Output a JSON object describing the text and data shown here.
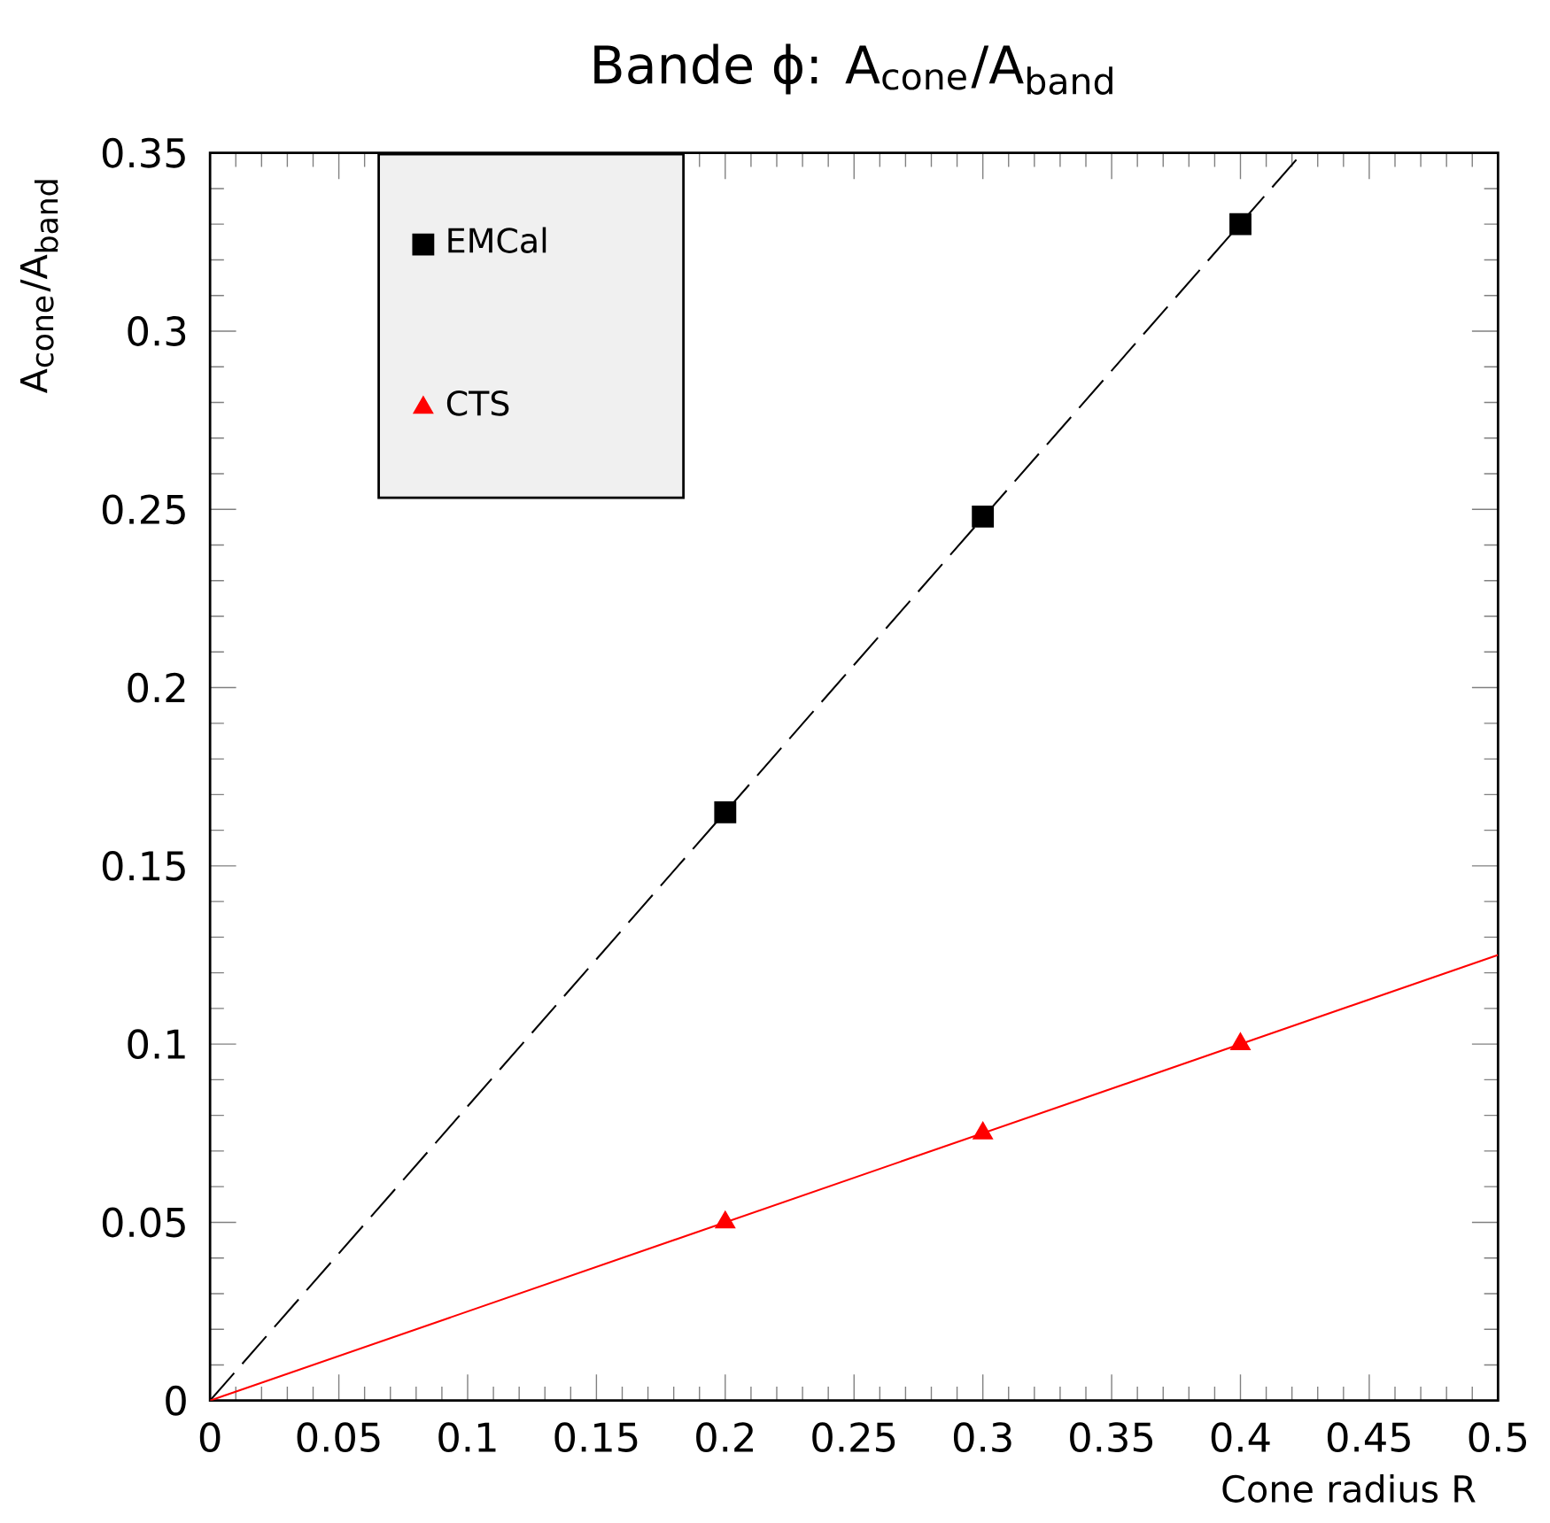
{
  "chart_data": {
    "type": "scatter",
    "title": "Bande ϕ: A$_{cone}$/A$_{band}$",
    "xlabel": "Cone radius R",
    "ylabel": "A$_{cone}$/A$_{band}$",
    "xlim": [
      0,
      0.5
    ],
    "ylim": [
      0,
      0.35
    ],
    "xticks": [
      0,
      0.05,
      0.1,
      0.15,
      0.2,
      0.25,
      0.3,
      0.35,
      0.4,
      0.45,
      0.5
    ],
    "yticks": [
      0,
      0.05,
      0.1,
      0.15,
      0.2,
      0.25,
      0.3,
      0.35
    ],
    "legend": "top left",
    "grid": false,
    "series": [
      {
        "name": "EMCal",
        "marker": "square",
        "color": "#000000",
        "x": [
          0.2,
          0.3,
          0.4
        ],
        "values": [
          0.165,
          0.248,
          0.33
        ]
      },
      {
        "name": "CTS",
        "marker": "triangle",
        "color": "#ff0000",
        "x": [
          0.2,
          0.3,
          0.4
        ],
        "values": [
          0.05,
          0.075,
          0.1
        ]
      },
      {
        "type": "line",
        "marker": "none",
        "line_style": "dashed",
        "color": "#000000",
        "x": [
          0,
          0.424
        ],
        "values": [
          0,
          0.35
        ]
      },
      {
        "type": "line",
        "marker": "none",
        "line_style": "solid",
        "color": "#ff0000",
        "x": [
          0,
          0.5
        ],
        "values": [
          0,
          0.125
        ]
      }
    ]
  }
}
